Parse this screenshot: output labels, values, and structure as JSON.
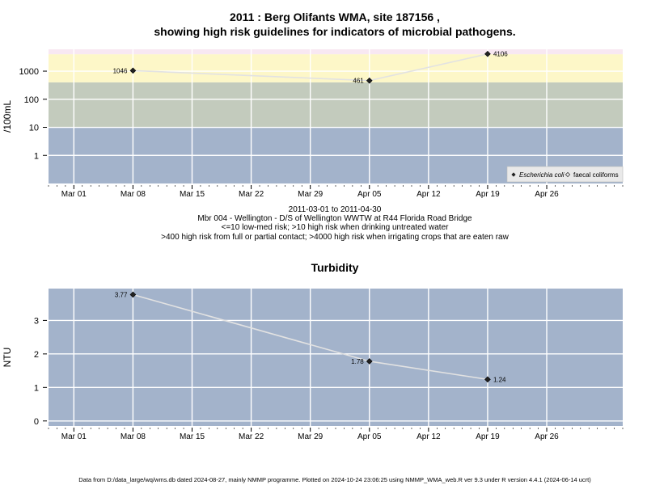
{
  "page": {
    "title_line1": "2011 : Berg Olifants WMA, site 187156 ,",
    "title_line2": "showing high risk guidelines for indicators of microbial pathogens.",
    "footer": "Data from D:/data_large/wq/wms.db dated 2024-08-27, mainly NMMP programme. Plotted on 2024-10-24 23:06:25 using NMMP_WMA_web.R ver 9.3 under R version 4.4.1 (2024-06-14 ucrt)"
  },
  "chart_data": [
    {
      "type": "line",
      "title": "",
      "ylabel": "/100mL",
      "yscale": "log",
      "ylim": [
        0.1,
        6000
      ],
      "y_ticks": [
        1,
        10,
        100,
        1000
      ],
      "y_tick_labels": [
        "1",
        "10",
        "100",
        "1000"
      ],
      "x_ticks": [
        "Mar 01",
        "Mar 08",
        "Mar 15",
        "Mar 22",
        "Mar 29",
        "Apr 05",
        "Apr 12",
        "Apr 19",
        "Apr 26"
      ],
      "x_range": [
        "2011-02-26",
        "2011-05-05"
      ],
      "risk_bands": [
        {
          "from": 0.1,
          "to": 10,
          "color": "#a3b3cb",
          "meaning": "<=10 low-med risk"
        },
        {
          "from": 10,
          "to": 400,
          "color": "#c3cbbd",
          "meaning": ">10 high risk when drinking untreated water"
        },
        {
          "from": 400,
          "to": 4000,
          "color": "#fdf7c8",
          "meaning": ">400 high risk from full or partial contact"
        },
        {
          "from": 4000,
          "to": 6000,
          "color": "#f8e8f2",
          "meaning": ">4000 high risk when irrigating crops that are eaten raw"
        }
      ],
      "series": [
        {
          "name": "Escherichia coli",
          "marker": "filled",
          "points": [
            {
              "x": "2011-03-08",
              "y": 1046,
              "label": "1046"
            },
            {
              "x": "2011-04-05",
              "y": 461,
              "label": "461"
            },
            {
              "x": "2011-04-19",
              "y": 4106,
              "label": "4106"
            }
          ]
        },
        {
          "name": "faecal coliforms",
          "marker": "open",
          "points": []
        }
      ],
      "legend_position": "bottom-right",
      "caption_lines": [
        "2011-03-01 to 2011-04-30",
        "Mbr 004 - Wellington - D/S of Wellington WWTW at R44 Florida Road Bridge",
        "<=10 low-med risk; >10 high risk when drinking untreated water",
        ">400 high risk from full or partial contact; >4000 high risk when irrigating crops that are eaten raw"
      ],
      "grid": true
    },
    {
      "type": "line",
      "title": "Turbidity",
      "ylabel": "NTU",
      "yscale": "linear",
      "ylim": [
        -0.15,
        3.95
      ],
      "y_ticks": [
        0,
        1,
        2,
        3
      ],
      "y_tick_labels": [
        "0",
        "1",
        "2",
        "3"
      ],
      "x_ticks": [
        "Mar 01",
        "Mar 08",
        "Mar 15",
        "Mar 22",
        "Mar 29",
        "Apr 05",
        "Apr 12",
        "Apr 19",
        "Apr 26"
      ],
      "x_range": [
        "2011-02-26",
        "2011-05-05"
      ],
      "background": "#a3b3cb",
      "series": [
        {
          "name": "",
          "marker": "filled",
          "points": [
            {
              "x": "2011-03-08",
              "y": 3.77,
              "label": "3.77"
            },
            {
              "x": "2011-04-05",
              "y": 1.78,
              "label": "1.78"
            },
            {
              "x": "2011-04-19",
              "y": 1.24,
              "label": "1.24"
            }
          ]
        }
      ],
      "grid": true
    }
  ]
}
